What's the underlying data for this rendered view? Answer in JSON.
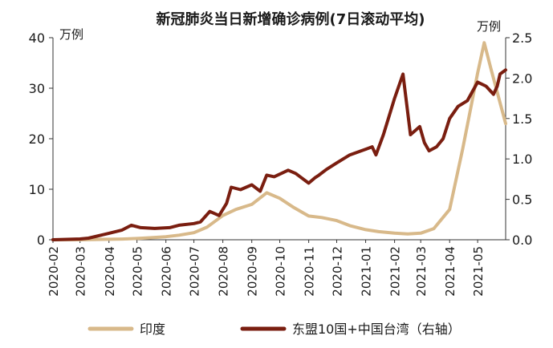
{
  "chart_data": {
    "type": "line",
    "title": "新冠肺炎当日新增确诊病例(7日滚动平均)",
    "y_left_unit": "万例",
    "y_right_unit": "万例",
    "y_left_lim": [
      0,
      40
    ],
    "y_right_lim": [
      0,
      2.5
    ],
    "y_left_ticks": [
      "0",
      "10",
      "20",
      "30",
      "40"
    ],
    "y_right_ticks": [
      "0.0",
      "0.5",
      "1.0",
      "1.5",
      "2.0",
      "2.5"
    ],
    "x_ticks": [
      "2020-02",
      "2020-03",
      "2020-04",
      "2020-05",
      "2020-06",
      "2020-07",
      "2020-08",
      "2020-09",
      "2020-10",
      "2020-11",
      "2020-12",
      "2021-01",
      "2021-02",
      "2021-03",
      "2021-04",
      "2021-05"
    ],
    "grid": false,
    "legend_position": "bottom",
    "series": [
      {
        "name": "印度",
        "axis": "left",
        "color": "#d8b98a",
        "x": [
          "2020-02-01",
          "2020-03-01",
          "2020-03-15",
          "2020-04-01",
          "2020-04-15",
          "2020-05-01",
          "2020-05-15",
          "2020-06-01",
          "2020-06-15",
          "2020-07-01",
          "2020-07-15",
          "2020-08-01",
          "2020-08-15",
          "2020-09-01",
          "2020-09-17",
          "2020-10-01",
          "2020-10-15",
          "2020-11-01",
          "2020-11-15",
          "2020-12-01",
          "2020-12-15",
          "2021-01-01",
          "2021-01-15",
          "2021-02-01",
          "2021-02-15",
          "2021-03-01",
          "2021-03-15",
          "2021-04-01",
          "2021-04-15",
          "2021-05-01",
          "2021-05-08",
          "2021-05-15",
          "2021-05-31"
        ],
        "values": [
          0,
          0,
          0.05,
          0.1,
          0.15,
          0.25,
          0.4,
          0.6,
          0.9,
          1.4,
          2.5,
          4.8,
          6.0,
          7.0,
          9.3,
          8.2,
          6.5,
          4.7,
          4.4,
          3.8,
          2.8,
          2.0,
          1.6,
          1.3,
          1.15,
          1.3,
          2.2,
          6.0,
          18.0,
          33.0,
          39.0,
          34.0,
          23.0
        ]
      },
      {
        "name": "东盟10国+中国台湾（右轴）",
        "axis": "right",
        "color": "#7a1e10",
        "x": [
          "2020-02-01",
          "2020-03-01",
          "2020-03-10",
          "2020-04-01",
          "2020-04-15",
          "2020-04-25",
          "2020-05-05",
          "2020-05-20",
          "2020-06-05",
          "2020-06-15",
          "2020-07-01",
          "2020-07-08",
          "2020-07-18",
          "2020-07-28",
          "2020-08-05",
          "2020-08-10",
          "2020-08-20",
          "2020-09-01",
          "2020-09-10",
          "2020-09-17",
          "2020-09-25",
          "2020-10-10",
          "2020-10-18",
          "2020-11-01",
          "2020-11-08",
          "2020-11-12",
          "2020-11-20",
          "2020-12-01",
          "2020-12-15",
          "2021-01-01",
          "2021-01-08",
          "2021-01-12",
          "2021-01-20",
          "2021-02-01",
          "2021-02-10",
          "2021-02-18",
          "2021-02-28",
          "2021-03-05",
          "2021-03-10",
          "2021-03-18",
          "2021-03-25",
          "2021-04-01",
          "2021-04-10",
          "2021-04-20",
          "2021-05-01",
          "2021-05-10",
          "2021-05-18",
          "2021-05-22",
          "2021-05-25",
          "2021-05-31"
        ],
        "values": [
          0,
          0.01,
          0.02,
          0.08,
          0.12,
          0.18,
          0.15,
          0.14,
          0.15,
          0.18,
          0.2,
          0.22,
          0.35,
          0.3,
          0.45,
          0.65,
          0.62,
          0.68,
          0.6,
          0.8,
          0.78,
          0.86,
          0.82,
          0.7,
          0.77,
          0.8,
          0.87,
          0.95,
          1.05,
          1.12,
          1.15,
          1.05,
          1.3,
          1.75,
          2.05,
          1.3,
          1.4,
          1.2,
          1.1,
          1.15,
          1.25,
          1.5,
          1.65,
          1.72,
          1.95,
          1.9,
          1.8,
          1.9,
          2.05,
          2.1
        ]
      }
    ]
  }
}
